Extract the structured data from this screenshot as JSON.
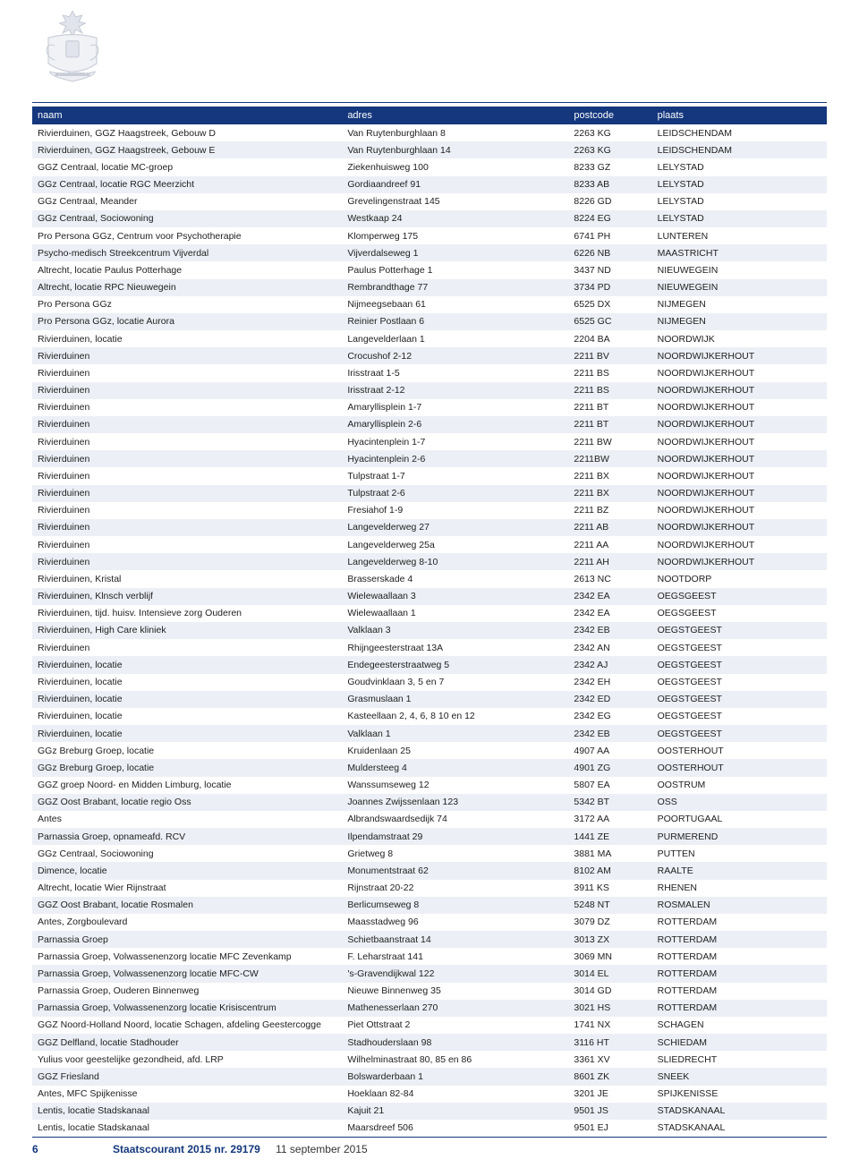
{
  "colors": {
    "brand": "#14377d",
    "row_even_bg": "#eceff5",
    "row_odd_bg": "#ffffff",
    "text": "#222222",
    "header_text": "#ffffff"
  },
  "typography": {
    "body_fontsize_pt": 8,
    "header_fontsize_pt": 8.5,
    "footer_fontsize_pt": 9
  },
  "table": {
    "columns": [
      {
        "key": "naam",
        "label": "naam",
        "width_pct": 39
      },
      {
        "key": "adres",
        "label": "adres",
        "width_pct": 28.5
      },
      {
        "key": "postcode",
        "label": "postcode",
        "width_pct": 10.5
      },
      {
        "key": "plaats",
        "label": "plaats",
        "width_pct": 22
      }
    ],
    "rows": [
      [
        "Rivierduinen, GGZ Haagstreek, Gebouw D",
        "Van Ruytenburghlaan 8",
        "2263 KG",
        "LEIDSCHENDAM"
      ],
      [
        "Rivierduinen, GGZ Haagstreek, Gebouw E",
        "Van Ruytenburghlaan 14",
        "2263 KG",
        "LEIDSCHENDAM"
      ],
      [
        "GGZ Centraal, locatie MC-groep",
        "Ziekenhuisweg 100",
        "8233 GZ",
        "LELYSTAD"
      ],
      [
        "GGz Centraal, locatie RGC Meerzicht",
        "Gordiaandreef 91",
        "8233 AB",
        "LELYSTAD"
      ],
      [
        "GGz Centraal, Meander",
        "Grevelingenstraat 145",
        "8226 GD",
        "LELYSTAD"
      ],
      [
        "GGz Centraal, Sociowoning",
        "Westkaap 24",
        "8224 EG",
        "LELYSTAD"
      ],
      [
        "Pro Persona GGz, Centrum voor Psychotherapie",
        "Klomperweg 175",
        "6741 PH",
        "LUNTEREN"
      ],
      [
        "Psycho-medisch Streekcentrum Vijverdal",
        "Vijverdalseweg 1",
        "6226 NB",
        "MAASTRICHT"
      ],
      [
        "Altrecht, locatie Paulus Potterhage",
        "Paulus Potterhage 1",
        "3437 ND",
        "NIEUWEGEIN"
      ],
      [
        "Altrecht, locatie RPC Nieuwegein",
        "Rembrandthage 77",
        "3734 PD",
        "NIEUWEGEIN"
      ],
      [
        "Pro Persona GGz",
        "Nijmeegsebaan 61",
        "6525 DX",
        "NIJMEGEN"
      ],
      [
        "Pro Persona GGz, locatie Aurora",
        "Reinier Postlaan 6",
        "6525 GC",
        "NIJMEGEN"
      ],
      [
        "Rivierduinen, locatie",
        "Langevelderlaan 1",
        "2204 BA",
        "NOORDWIJK"
      ],
      [
        "Rivierduinen",
        "Crocushof 2-12",
        "2211 BV",
        "NOORDWIJKERHOUT"
      ],
      [
        "Rivierduinen",
        "Irisstraat 1-5",
        "2211 BS",
        "NOORDWIJKERHOUT"
      ],
      [
        "Rivierduinen",
        "Irisstraat 2-12",
        "2211 BS",
        "NOORDWIJKERHOUT"
      ],
      [
        "Rivierduinen",
        "Amaryllisplein 1-7",
        "2211 BT",
        "NOORDWIJKERHOUT"
      ],
      [
        "Rivierduinen",
        "Amaryllisplein 2-6",
        "2211 BT",
        "NOORDWIJKERHOUT"
      ],
      [
        "Rivierduinen",
        "Hyacintenplein 1-7",
        "2211 BW",
        "NOORDWIJKERHOUT"
      ],
      [
        "Rivierduinen",
        "Hyacintenplein 2-6",
        "2211BW",
        "NOORDWIJKERHOUT"
      ],
      [
        "Rivierduinen",
        "Tulpstraat 1-7",
        "2211 BX",
        "NOORDWIJKERHOUT"
      ],
      [
        "Rivierduinen",
        "Tulpstraat 2-6",
        "2211 BX",
        "NOORDWIJKERHOUT"
      ],
      [
        "Rivierduinen",
        "Fresiahof 1-9",
        "2211 BZ",
        "NOORDWIJKERHOUT"
      ],
      [
        "Rivierduinen",
        "Langevelderweg 27",
        "2211 AB",
        "NOORDWIJKERHOUT"
      ],
      [
        "Rivierduinen",
        "Langevelderweg 25a",
        "2211 AA",
        "NOORDWIJKERHOUT"
      ],
      [
        "Rivierduinen",
        "Langevelderweg 8-10",
        "2211 AH",
        "NOORDWIJKERHOUT"
      ],
      [
        "Rivierduinen, Kristal",
        "Brasserskade 4",
        "2613 NC",
        "NOOTDORP"
      ],
      [
        "Rivierduinen, Klnsch verblijf",
        "Wielewaallaan 3",
        "2342 EA",
        "OEGSGEEST"
      ],
      [
        "Rivierduinen, tijd. huisv. Intensieve zorg Ouderen",
        "Wielewaallaan 1",
        "2342 EA",
        "OEGSGEEST"
      ],
      [
        "Rivierduinen, High Care kliniek",
        "Valklaan 3",
        "2342 EB",
        "OEGSTGEEST"
      ],
      [
        "Rivierduinen",
        "Rhijngeesterstraat 13A",
        "2342 AN",
        "OEGSTGEEST"
      ],
      [
        "Rivierduinen, locatie",
        "Endegeesterstraatweg 5",
        "2342 AJ",
        "OEGSTGEEST"
      ],
      [
        "Rivierduinen, locatie",
        "Goudvinklaan 3, 5 en 7",
        "2342 EH",
        "OEGSTGEEST"
      ],
      [
        "Rivierduinen, locatie",
        "Grasmuslaan 1",
        "2342 ED",
        "OEGSTGEEST"
      ],
      [
        "Rivierduinen, locatie",
        "Kasteellaan 2, 4, 6, 8 10 en 12",
        "2342 EG",
        "OEGSTGEEST"
      ],
      [
        "Rivierduinen, locatie",
        "Valklaan 1",
        "2342 EB",
        "OEGSTGEEST"
      ],
      [
        "GGz Breburg Groep, locatie",
        "Kruidenlaan 25",
        "4907 AA",
        "OOSTERHOUT"
      ],
      [
        "GGz Breburg Groep, locatie",
        "Muldersteeg 4",
        "4901 ZG",
        "OOSTERHOUT"
      ],
      [
        "GGZ groep Noord- en Midden Limburg, locatie",
        "Wanssumseweg 12",
        "5807 EA",
        "OOSTRUM"
      ],
      [
        "GGZ Oost Brabant, locatie regio Oss",
        "Joannes Zwijssenlaan 123",
        "5342 BT",
        "OSS"
      ],
      [
        "Antes",
        "Albrandswaardsedijk 74",
        "3172 AA",
        "POORTUGAAL"
      ],
      [
        "Parnassia Groep, opnameafd. RCV",
        "Ilpendamstraat 29",
        "1441 ZE",
        "PURMEREND"
      ],
      [
        "GGz Centraal, Sociowoning",
        "Grietweg 8",
        "3881 MA",
        "PUTTEN"
      ],
      [
        "Dimence, locatie",
        "Monumentstraat 62",
        "8102 AM",
        "RAALTE"
      ],
      [
        "Altrecht, locatie Wier Rijnstraat",
        "Rijnstraat 20-22",
        "3911 KS",
        "RHENEN"
      ],
      [
        "GGZ Oost Brabant, locatie Rosmalen",
        "Berlicumseweg 8",
        "5248 NT",
        "ROSMALEN"
      ],
      [
        "Antes, Zorgboulevard",
        "Maasstadweg 96",
        "3079 DZ",
        "ROTTERDAM"
      ],
      [
        "Parnassia Groep",
        "Schietbaanstraat 14",
        "3013 ZX",
        "ROTTERDAM"
      ],
      [
        "Parnassia Groep, Volwassenenzorg locatie MFC Zevenkamp",
        "F. Leharstraat 141",
        "3069 MN",
        "ROTTERDAM"
      ],
      [
        "Parnassia Groep, Volwassenenzorg locatie MFC-CW",
        "'s-Gravendijkwal 122",
        "3014 EL",
        "ROTTERDAM"
      ],
      [
        "Parnassia Groep, Ouderen Binnenweg",
        "Nieuwe Binnenweg 35",
        "3014 GD",
        "ROTTERDAM"
      ],
      [
        "Parnassia Groep, Volwassenenzorg locatie Krisiscentrum",
        "Mathenesserlaan 270",
        "3021 HS",
        "ROTTERDAM"
      ],
      [
        "GGZ Noord-Holland Noord, locatie Schagen, afdeling Geestercogge",
        "Piet Ottstraat 2",
        "1741 NX",
        "SCHAGEN"
      ],
      [
        "GGZ Delfland, locatie Stadhouder",
        "Stadhouderslaan 98",
        "3116 HT",
        "SCHIEDAM"
      ],
      [
        "Yulius voor geestelijke gezondheid, afd. LRP",
        "Wilhelminastraat 80, 85 en 86",
        "3361 XV",
        "SLIEDRECHT"
      ],
      [
        "GGZ Friesland",
        "Bolswarderbaan 1",
        "8601 ZK",
        "SNEEK"
      ],
      [
        "Antes, MFC Spijkenisse",
        "Hoeklaan 82-84",
        "3201 JE",
        "SPIJKENISSE"
      ],
      [
        "Lentis, locatie Stadskanaal",
        "Kajuit 21",
        "9501 JS",
        "STADSKANAAL"
      ],
      [
        "Lentis, locatie Stadskanaal",
        "Maarsdreef 506",
        "9501 EJ",
        "STADSKANAAL"
      ]
    ]
  },
  "footer": {
    "page_number": "6",
    "publication_title": "Staatscourant 2015 nr. 29179",
    "publication_date": "11 september 2015"
  }
}
